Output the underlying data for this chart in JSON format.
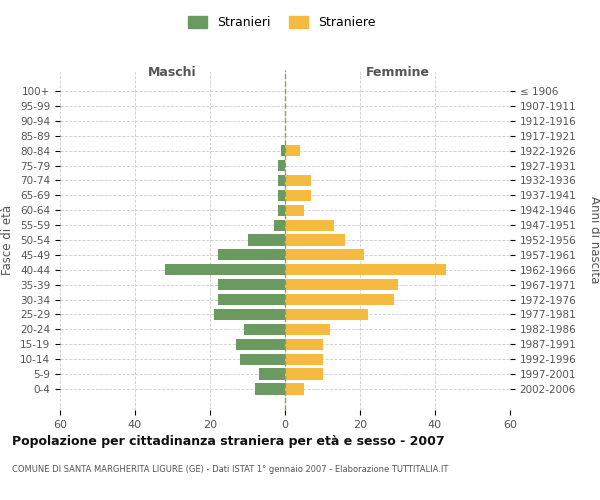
{
  "age_groups": [
    "100+",
    "95-99",
    "90-94",
    "85-89",
    "80-84",
    "75-79",
    "70-74",
    "65-69",
    "60-64",
    "55-59",
    "50-54",
    "45-49",
    "40-44",
    "35-39",
    "30-34",
    "25-29",
    "20-24",
    "15-19",
    "10-14",
    "5-9",
    "0-4"
  ],
  "birth_years": [
    "≤ 1906",
    "1907-1911",
    "1912-1916",
    "1917-1921",
    "1922-1926",
    "1927-1931",
    "1932-1936",
    "1937-1941",
    "1942-1946",
    "1947-1951",
    "1952-1956",
    "1957-1961",
    "1962-1966",
    "1967-1971",
    "1972-1976",
    "1977-1981",
    "1982-1986",
    "1987-1991",
    "1992-1996",
    "1997-2001",
    "2002-2006"
  ],
  "maschi": [
    0,
    0,
    0,
    0,
    1,
    2,
    2,
    2,
    2,
    3,
    10,
    18,
    32,
    18,
    18,
    19,
    11,
    13,
    12,
    7,
    8
  ],
  "femmine": [
    0,
    0,
    0,
    0,
    4,
    0,
    7,
    7,
    5,
    13,
    16,
    21,
    43,
    30,
    29,
    22,
    12,
    10,
    10,
    10,
    5
  ],
  "color_maschi": "#6a9a5f",
  "color_femmine": "#f5bb40",
  "title": "Popolazione per cittadinanza straniera per età e sesso - 2007",
  "subtitle": "COMUNE DI SANTA MARGHERITA LIGURE (GE) - Dati ISTAT 1° gennaio 2007 - Elaborazione TUTTITALIA.IT",
  "xlabel_left": "Maschi",
  "xlabel_right": "Femmine",
  "ylabel_left": "Fasce di età",
  "ylabel_right": "Anni di nascita",
  "legend_maschi": "Stranieri",
  "legend_femmine": "Straniere",
  "xlim": 60,
  "background_color": "#ffffff",
  "grid_color": "#cccccc"
}
